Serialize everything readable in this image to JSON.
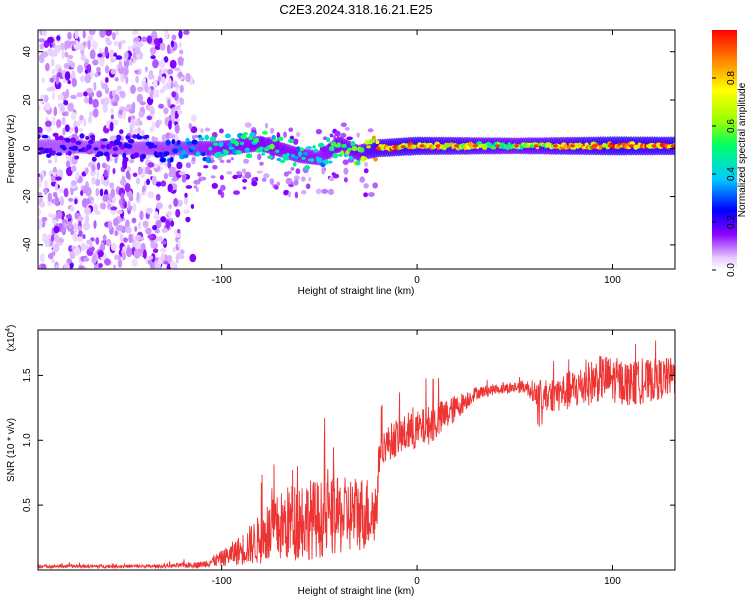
{
  "title": "C2E3.2024.318.16.21.E25",
  "chart_data": [
    {
      "type": "heatmap",
      "xlabel": "Height of straight line (km)",
      "ylabel": "Frequency (Hz)",
      "xlim": [
        -194,
        132
      ],
      "ylim": [
        -50,
        49
      ],
      "xticks": [
        -100,
        0,
        100
      ],
      "yticks": [
        -40,
        -20,
        0,
        20,
        40
      ],
      "colorbar": {
        "label": "Normalized spectral amplitude",
        "range": [
          0,
          1
        ],
        "ticks": [
          "0.0",
          "0.2",
          "0.4",
          "0.6",
          "0.8"
        ],
        "tick_values": [
          0,
          0.2,
          0.4,
          0.6,
          0.8
        ]
      },
      "ridge": [
        {
          "x": -190,
          "y": 1,
          "amp": 0.2
        },
        {
          "x": -150,
          "y": 0,
          "amp": 0.2
        },
        {
          "x": -120,
          "y": 0,
          "amp": 0.3
        },
        {
          "x": -100,
          "y": 0,
          "amp": 0.45
        },
        {
          "x": -80,
          "y": 2,
          "amp": 0.5
        },
        {
          "x": -60,
          "y": -3,
          "amp": 0.45
        },
        {
          "x": -50,
          "y": -4,
          "amp": 0.4
        },
        {
          "x": -40,
          "y": 2,
          "amp": 0.5
        },
        {
          "x": -30,
          "y": -2,
          "amp": 0.55
        },
        {
          "x": -20,
          "y": 0,
          "amp": 0.8
        },
        {
          "x": 0,
          "y": 1,
          "amp": 0.85
        },
        {
          "x": 50,
          "y": 1,
          "amp": 0.6
        },
        {
          "x": 100,
          "y": 1,
          "amp": 0.9
        },
        {
          "x": 130,
          "y": 1,
          "amp": 0.85
        }
      ]
    },
    {
      "type": "line",
      "xlabel": "Height of straight line (km)",
      "ylabel": "SNR (10 * v/v)",
      "scale_note": "(x10",
      "scale_exp": "4",
      "xlim": [
        -194,
        132
      ],
      "ylim": [
        0,
        18500
      ],
      "xticks": [
        -100,
        0,
        100
      ],
      "yticks": [
        5000,
        10000,
        15000
      ],
      "ytick_labels": [
        "0.5",
        "1.0",
        "1.5"
      ],
      "color": "#ee3333",
      "envelope": [
        {
          "x": -194,
          "base": 250,
          "amp": 250
        },
        {
          "x": -130,
          "base": 250,
          "amp": 250
        },
        {
          "x": -110,
          "base": 350,
          "amp": 500
        },
        {
          "x": -100,
          "base": 700,
          "amp": 1200
        },
        {
          "x": -90,
          "base": 1200,
          "amp": 2400
        },
        {
          "x": -80,
          "base": 1800,
          "amp": 4000
        },
        {
          "x": -70,
          "base": 2500,
          "amp": 5500
        },
        {
          "x": -60,
          "base": 3000,
          "amp": 6500
        },
        {
          "x": -50,
          "base": 3000,
          "amp": 6000
        },
        {
          "x": -40,
          "base": 3200,
          "amp": 6000
        },
        {
          "x": -30,
          "base": 3500,
          "amp": 6000
        },
        {
          "x": -21,
          "base": 3600,
          "amp": 5500
        },
        {
          "x": -19,
          "base": 9000,
          "amp": 2500
        },
        {
          "x": -10,
          "base": 9800,
          "amp": 3000
        },
        {
          "x": 0,
          "base": 10300,
          "amp": 3000
        },
        {
          "x": 10,
          "base": 11000,
          "amp": 3000
        },
        {
          "x": 20,
          "base": 12200,
          "amp": 2000
        },
        {
          "x": 30,
          "base": 13500,
          "amp": 1000
        },
        {
          "x": 40,
          "base": 13800,
          "amp": 800
        },
        {
          "x": 55,
          "base": 14000,
          "amp": 1000
        },
        {
          "x": 65,
          "base": 13000,
          "amp": 2500
        },
        {
          "x": 80,
          "base": 13400,
          "amp": 3200
        },
        {
          "x": 95,
          "base": 14300,
          "amp": 3600
        },
        {
          "x": 110,
          "base": 13800,
          "amp": 3500
        },
        {
          "x": 132,
          "base": 14500,
          "amp": 3000
        }
      ]
    }
  ]
}
